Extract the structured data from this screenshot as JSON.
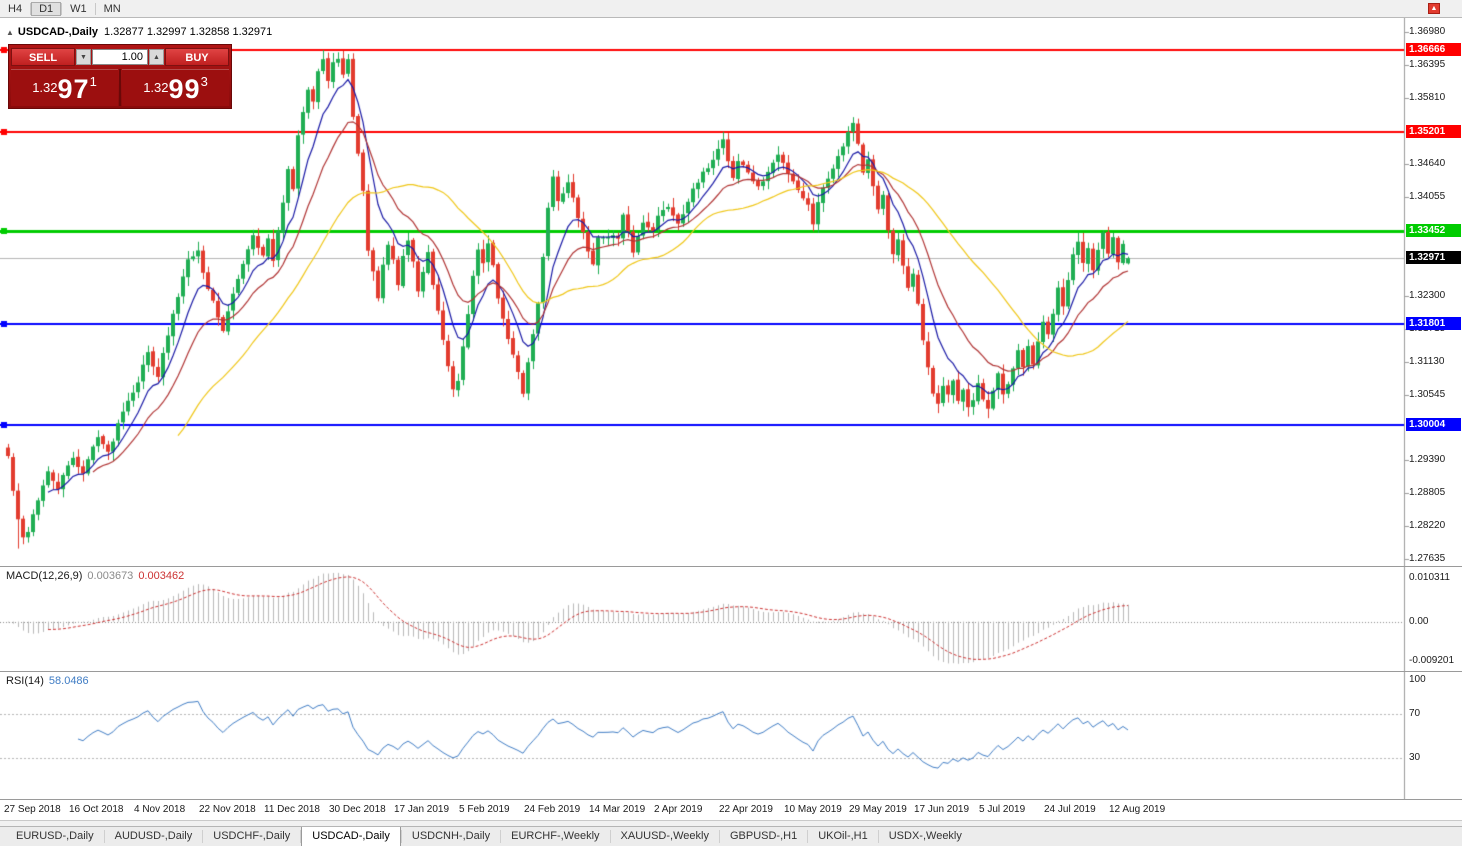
{
  "toolbar": {
    "timeframes": [
      "H4",
      "D1",
      "W1",
      "MN"
    ],
    "active_timeframe": "D1"
  },
  "icons": {
    "scroll_to_end": "▲",
    "collapse_panel": "▲",
    "lot_down": "▼",
    "lot_up": "▲"
  },
  "chart": {
    "symbol_title": "USDCAD-,Daily",
    "quote_ohlc": "1.32877 1.32997 1.32858 1.32971"
  },
  "one_click": {
    "sell_label": "SELL",
    "buy_label": "BUY",
    "lot_value": "1.00",
    "sell_price": {
      "base": "1.32",
      "big": "97",
      "sup": "1"
    },
    "buy_price": {
      "base": "1.32",
      "big": "99",
      "sup": "3"
    }
  },
  "colors": {
    "candle_up": "#1fae53",
    "candle_down": "#e23b2e",
    "macd_hist": "#b8b8b8",
    "macd_signal": "#cc3333",
    "rsi_line": "#3f7cc4",
    "axis": "#9a9a9a"
  },
  "chart_data": {
    "type": "candlestick",
    "title": "USDCAD-,Daily",
    "candle_count": 225,
    "last_ohlc": {
      "open": 1.32877,
      "high": 1.32997,
      "low": 1.32858,
      "close": 1.32971
    },
    "y_axis": {
      "max": 1.3698,
      "min": 1.27635,
      "ticks": [
        "1.36980",
        "1.36395",
        "1.35810",
        "1.34640",
        "1.34055",
        "1.32300",
        "1.31715",
        "1.31130",
        "1.30545",
        "1.29390",
        "1.28805",
        "1.28220",
        "1.27635"
      ]
    },
    "x_axis": {
      "dates": [
        "27 Sep 2018",
        "16 Oct 2018",
        "4 Nov 2018",
        "22 Nov 2018",
        "11 Dec 2018",
        "30 Dec 2018",
        "17 Jan 2019",
        "5 Feb 2019",
        "24 Feb 2019",
        "14 Mar 2019",
        "2 Apr 2019",
        "22 Apr 2019",
        "10 May 2019",
        "29 May 2019",
        "17 Jun 2019",
        "5 Jul 2019",
        "24 Jul 2019",
        "12 Aug 2019"
      ]
    },
    "horizontal_lines": [
      {
        "price": 1.36666,
        "label": "1.36666",
        "color": "#FF0000",
        "width": 2,
        "role": "resistance"
      },
      {
        "price": 1.35201,
        "label": "1.35201",
        "color": "#FF0000",
        "width": 2,
        "role": "resistance"
      },
      {
        "price": 1.33452,
        "label": "1.33452",
        "color": "#00CC00",
        "width": 3,
        "role": "resistance"
      },
      {
        "price": 1.32971,
        "label": "1.32971",
        "color": "#B5B5B5",
        "width": 1,
        "box": "#000000",
        "marker": false,
        "role": "bid"
      },
      {
        "price": 1.31801,
        "label": "1.31801",
        "color": "#0000FF",
        "width": 2,
        "role": "support"
      },
      {
        "price": 1.30004,
        "label": "1.30004",
        "color": "#0000FF",
        "width": 2,
        "role": "support"
      }
    ],
    "moving_averages": [
      {
        "period": 8,
        "method": "ema",
        "color": "#1a1aa6"
      },
      {
        "period": 17,
        "method": "ema",
        "color": "#b03434"
      },
      {
        "period": 34,
        "method": "sma",
        "color": "#efc617"
      }
    ],
    "price_path_keypoints": [
      [
        0,
        1.2945
      ],
      [
        1,
        1.2885
      ],
      [
        2,
        1.283
      ],
      [
        3,
        1.28
      ],
      [
        4,
        1.2815
      ],
      [
        6,
        1.287
      ],
      [
        8,
        1.2915
      ],
      [
        10,
        1.289
      ],
      [
        13,
        1.2945
      ],
      [
        15,
        1.2915
      ],
      [
        18,
        1.2985
      ],
      [
        20,
        1.295
      ],
      [
        23,
        1.303
      ],
      [
        26,
        1.308
      ],
      [
        28,
        1.313
      ],
      [
        30,
        1.309
      ],
      [
        32,
        1.316
      ],
      [
        34,
        1.323
      ],
      [
        36,
        1.33
      ],
      [
        38,
        1.331
      ],
      [
        39,
        1.327
      ],
      [
        41,
        1.322
      ],
      [
        43,
        1.317
      ],
      [
        45,
        1.323
      ],
      [
        47,
        1.329
      ],
      [
        49,
        1.334
      ],
      [
        51,
        1.33
      ],
      [
        52,
        1.333
      ],
      [
        53,
        1.329
      ],
      [
        54,
        1.334
      ],
      [
        55,
        1.34
      ],
      [
        56,
        1.345
      ],
      [
        57,
        1.342
      ],
      [
        58,
        1.351
      ],
      [
        59,
        1.356
      ],
      [
        60,
        1.36
      ],
      [
        61,
        1.358
      ],
      [
        62,
        1.363
      ],
      [
        63,
        1.365
      ],
      [
        64,
        1.361
      ],
      [
        65,
        1.364
      ],
      [
        66,
        1.3655
      ],
      [
        67,
        1.362
      ],
      [
        68,
        1.3645
      ],
      [
        69,
        1.355
      ],
      [
        70,
        1.348
      ],
      [
        71,
        1.342
      ],
      [
        72,
        1.331
      ],
      [
        73,
        1.327
      ],
      [
        74,
        1.323
      ],
      [
        75,
        1.328
      ],
      [
        76,
        1.332
      ],
      [
        77,
        1.329
      ],
      [
        78,
        1.325
      ],
      [
        79,
        1.33
      ],
      [
        80,
        1.333
      ],
      [
        81,
        1.329
      ],
      [
        82,
        1.324
      ],
      [
        83,
        1.327
      ],
      [
        84,
        1.331
      ],
      [
        85,
        1.325
      ],
      [
        86,
        1.32
      ],
      [
        87,
        1.315
      ],
      [
        88,
        1.31
      ],
      [
        89,
        1.306
      ],
      [
        90,
        1.308
      ],
      [
        91,
        1.314
      ],
      [
        92,
        1.32
      ],
      [
        93,
        1.327
      ],
      [
        94,
        1.331
      ],
      [
        95,
        1.329
      ],
      [
        96,
        1.332
      ],
      [
        97,
        1.328
      ],
      [
        98,
        1.323
      ],
      [
        99,
        1.319
      ],
      [
        100,
        1.315
      ],
      [
        101,
        1.313
      ],
      [
        102,
        1.309
      ],
      [
        103,
        1.306
      ],
      [
        104,
        1.311
      ],
      [
        105,
        1.316
      ],
      [
        106,
        1.322
      ],
      [
        107,
        1.33
      ],
      [
        108,
        1.339
      ],
      [
        109,
        1.344
      ],
      [
        110,
        1.34
      ],
      [
        112,
        1.343
      ],
      [
        114,
        1.337
      ],
      [
        116,
        1.331
      ],
      [
        117,
        1.329
      ],
      [
        118,
        1.333
      ],
      [
        120,
        1.334
      ],
      [
        122,
        1.333
      ],
      [
        123,
        1.337
      ],
      [
        125,
        1.331
      ],
      [
        127,
        1.336
      ],
      [
        129,
        1.335
      ],
      [
        130,
        1.337
      ],
      [
        132,
        1.339
      ],
      [
        134,
        1.336
      ],
      [
        136,
        1.34
      ],
      [
        138,
        1.343
      ],
      [
        140,
        1.346
      ],
      [
        142,
        1.349
      ],
      [
        143,
        1.351
      ],
      [
        144,
        1.347
      ],
      [
        145,
        1.344
      ],
      [
        146,
        1.347
      ],
      [
        148,
        1.345
      ],
      [
        150,
        1.342
      ],
      [
        152,
        1.345
      ],
      [
        154,
        1.348
      ],
      [
        156,
        1.345
      ],
      [
        158,
        1.342
      ],
      [
        160,
        1.339
      ],
      [
        161,
        1.336
      ],
      [
        162,
        1.34
      ],
      [
        164,
        1.344
      ],
      [
        166,
        1.348
      ],
      [
        168,
        1.352
      ],
      [
        169,
        1.354
      ],
      [
        170,
        1.35
      ],
      [
        171,
        1.345
      ],
      [
        172,
        1.347
      ],
      [
        173,
        1.342
      ],
      [
        174,
        1.338
      ],
      [
        175,
        1.341
      ],
      [
        176,
        1.335
      ],
      [
        177,
        1.33
      ],
      [
        178,
        1.333
      ],
      [
        179,
        1.328
      ],
      [
        180,
        1.324
      ],
      [
        181,
        1.327
      ],
      [
        182,
        1.322
      ],
      [
        183,
        1.315
      ],
      [
        184,
        1.31
      ],
      [
        185,
        1.306
      ],
      [
        186,
        1.304
      ],
      [
        187,
        1.307
      ],
      [
        188,
        1.305
      ],
      [
        189,
        1.308
      ],
      [
        190,
        1.304
      ],
      [
        191,
        1.306
      ],
      [
        192,
        1.303
      ],
      [
        193,
        1.305
      ],
      [
        194,
        1.308
      ],
      [
        195,
        1.305
      ],
      [
        196,
        1.303
      ],
      [
        197,
        1.306
      ],
      [
        198,
        1.309
      ],
      [
        199,
        1.305
      ],
      [
        200,
        1.307
      ],
      [
        201,
        1.31
      ],
      [
        202,
        1.313
      ],
      [
        203,
        1.31
      ],
      [
        204,
        1.314
      ],
      [
        205,
        1.311
      ],
      [
        206,
        1.315
      ],
      [
        207,
        1.318
      ],
      [
        208,
        1.316
      ],
      [
        209,
        1.32
      ],
      [
        210,
        1.324
      ],
      [
        211,
        1.321
      ],
      [
        212,
        1.326
      ],
      [
        213,
        1.33
      ],
      [
        214,
        1.333
      ],
      [
        215,
        1.329
      ],
      [
        216,
        1.332
      ],
      [
        217,
        1.328
      ],
      [
        218,
        1.331
      ],
      [
        219,
        1.334
      ],
      [
        220,
        1.33
      ],
      [
        221,
        1.333
      ],
      [
        222,
        1.329
      ],
      [
        223,
        1.332
      ],
      [
        224,
        1.32971
      ]
    ],
    "pinned_extremes": [
      {
        "index": 2,
        "type": "low",
        "price": 1.2782
      },
      {
        "index": 63,
        "type": "high",
        "price": 1.3666
      },
      {
        "index": 66,
        "type": "high",
        "price": 1.3662
      },
      {
        "index": 143,
        "type": "high",
        "price": 1.3521
      },
      {
        "index": 169,
        "type": "high",
        "price": 1.3547
      },
      {
        "index": 192,
        "type": "low",
        "price": 1.3016
      }
    ],
    "indicators": {
      "macd": {
        "label": "MACD(12,26,9)",
        "main_value": "0.003673",
        "signal_value": "0.003462",
        "axis_labels": [
          "0.010311",
          "0.00",
          "-0.009201"
        ]
      },
      "rsi": {
        "label": "RSI(14)",
        "value": "58.0486",
        "axis_labels": [
          "100",
          "70",
          "30"
        ],
        "levels": [
          70,
          30
        ]
      }
    }
  },
  "tabs": [
    {
      "label": "EURUSD-,Daily",
      "active": false
    },
    {
      "label": "AUDUSD-,Daily",
      "active": false
    },
    {
      "label": "USDCHF-,Daily",
      "active": false
    },
    {
      "label": "USDCAD-,Daily",
      "active": true
    },
    {
      "label": "USDCNH-,Daily",
      "active": false
    },
    {
      "label": "EURCHF-,Weekly",
      "active": false
    },
    {
      "label": "XAUUSD-,Weekly",
      "active": false
    },
    {
      "label": "GBPUSD-,H1",
      "active": false
    },
    {
      "label": "UKOil-,H1",
      "active": false
    },
    {
      "label": "USDX-,Weekly",
      "active": false
    }
  ]
}
